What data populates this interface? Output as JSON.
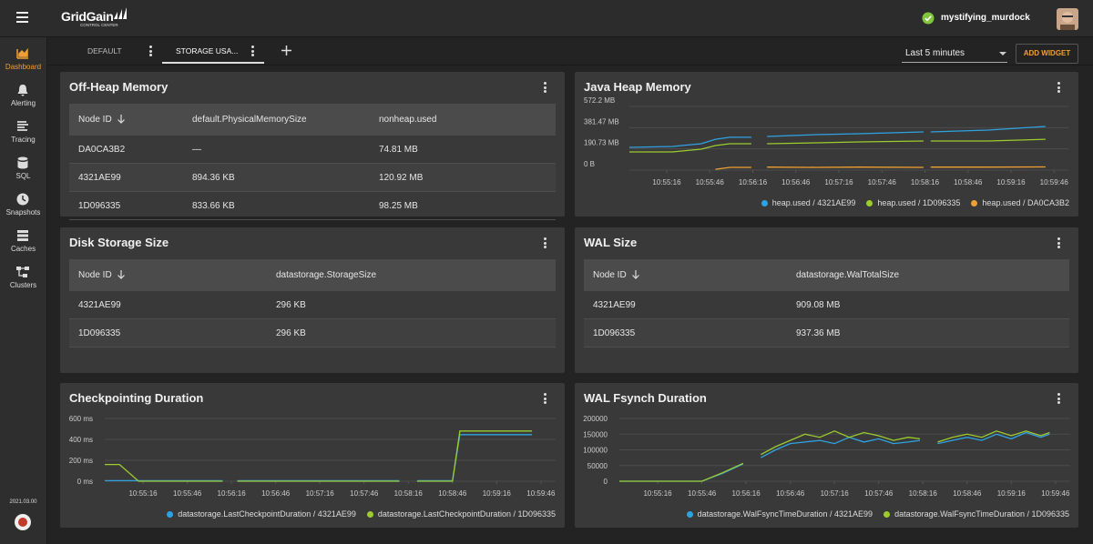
{
  "header": {
    "brand": "GridGain",
    "brand_sub": "CONTROL CENTER",
    "user": "mystifying_murdock"
  },
  "sidebar": {
    "items": [
      "Dashboard",
      "Alerting",
      "Tracing",
      "SQL",
      "Snapshots",
      "Caches",
      "Clusters"
    ],
    "version": "2021.03.00"
  },
  "tabs": {
    "items": [
      "DEFAULT",
      "STORAGE USA..."
    ],
    "time_range": "Last 5 minutes",
    "add_widget": "ADD WIDGET"
  },
  "tables": [
    {
      "title": "Off-Heap Memory",
      "headers": [
        "Node ID",
        "default.PhysicalMemorySize",
        "nonheap.used"
      ],
      "rows": [
        [
          "DA0CA3B2",
          "—",
          "74.81 MB"
        ],
        [
          "4321AE99",
          "894.36 KB",
          "120.92 MB"
        ],
        [
          "1D096335",
          "833.66 KB",
          "98.25 MB"
        ]
      ]
    },
    {
      "title": "Disk Storage Size",
      "headers": [
        "Node ID",
        "datastorage.StorageSize"
      ],
      "rows": [
        [
          "4321AE99",
          "296 KB"
        ],
        [
          "1D096335",
          "296 KB"
        ]
      ]
    },
    {
      "title": "WAL Size",
      "headers": [
        "Node ID",
        "datastorage.WalTotalSize"
      ],
      "rows": [
        [
          "4321AE99",
          "909.08 MB"
        ],
        [
          "1D096335",
          "937.36 MB"
        ]
      ]
    }
  ],
  "chart_data": [
    {
      "type": "line",
      "title": "Java Heap Memory",
      "x": [
        "10:54:50",
        "10:55:20",
        "10:55:40",
        "10:55:50",
        "10:56:00",
        "10:56:15",
        "10:56:20",
        "10:56:26",
        "10:57:00",
        "10:57:30",
        "10:58:15",
        "10:58:17",
        "10:58:20",
        "10:59:00",
        "10:59:40"
      ],
      "xlim": [
        "10:54:50",
        "10:59:56"
      ],
      "xticks": [
        "10:55:16",
        "10:55:46",
        "10:56:16",
        "10:56:46",
        "10:57:16",
        "10:57:46",
        "10:58:16",
        "10:58:46",
        "10:59:16",
        "10:59:46"
      ],
      "ylim": [
        0,
        600000000
      ],
      "yticks": [
        {
          "value": 0,
          "label": "0 B"
        },
        {
          "value": 200000000,
          "label": "190.73 MB"
        },
        {
          "value": 400000000,
          "label": "381.47 MB"
        },
        {
          "value": 600000000,
          "label": "572.2 MB"
        }
      ],
      "grid": true,
      "legend": "bottom-right",
      "series": [
        {
          "name": "heap.used / 4321AE99",
          "color": "#2ea3e3",
          "values": [
            214000000,
            223000000,
            249000000,
            291000000,
            309000000,
            309000000,
            null,
            317000000,
            334000000,
            343000000,
            360000000,
            null,
            360000000,
            377000000,
            411000000
          ]
        },
        {
          "name": "heap.used / 1D096335",
          "color": "#9ccc2e",
          "values": [
            171000000,
            171000000,
            197000000,
            231000000,
            249000000,
            249000000,
            null,
            249000000,
            257000000,
            266000000,
            274000000,
            null,
            274000000,
            274000000,
            291000000
          ]
        },
        {
          "name": "heap.used / DA0CA3B2",
          "color": "#f0a030",
          "values": [
            null,
            null,
            null,
            8000000,
            26000000,
            26000000,
            null,
            28000000,
            26000000,
            28000000,
            26000000,
            null,
            28000000,
            28000000,
            30000000
          ]
        }
      ]
    },
    {
      "type": "line",
      "title": "Checkpointing Duration",
      "x": [
        "10:54:50",
        "10:55:00",
        "10:55:13",
        "10:55:40",
        "10:56:10",
        "10:56:16",
        "10:56:20",
        "10:57:30",
        "10:58:10",
        "10:58:16",
        "10:58:22",
        "10:58:46",
        "10:58:51",
        "10:59:20",
        "10:59:40"
      ],
      "xlim": [
        "10:54:50",
        "10:59:56"
      ],
      "xticks": [
        "10:55:16",
        "10:55:46",
        "10:56:16",
        "10:56:46",
        "10:57:16",
        "10:57:46",
        "10:58:16",
        "10:58:46",
        "10:59:16",
        "10:59:46"
      ],
      "ylim": [
        0,
        600
      ],
      "yticks": [
        {
          "value": 0,
          "label": "0 ms"
        },
        {
          "value": 200,
          "label": "200 ms"
        },
        {
          "value": 400,
          "label": "400 ms"
        },
        {
          "value": 600,
          "label": "600 ms"
        }
      ],
      "grid": true,
      "legend": "bottom-right",
      "series": [
        {
          "name": "datastorage.LastCheckpointDuration / 4321AE99",
          "color": "#2ea3e3",
          "values": [
            5,
            5,
            5,
            5,
            5,
            null,
            5,
            5,
            5,
            null,
            5,
            5,
            445,
            445,
            445
          ]
        },
        {
          "name": "datastorage.LastCheckpointDuration / 1D096335",
          "color": "#9ccc2e",
          "values": [
            160,
            160,
            0,
            0,
            0,
            null,
            0,
            0,
            0,
            null,
            0,
            0,
            480,
            480,
            480
          ]
        }
      ]
    },
    {
      "type": "line",
      "title": "WAL Fsynch Duration",
      "x": [
        "10:54:50",
        "10:55:20",
        "10:55:46",
        "10:56:00",
        "10:56:14",
        "10:56:20",
        "10:56:26",
        "10:56:36",
        "10:56:46",
        "10:56:56",
        "10:57:06",
        "10:57:16",
        "10:57:26",
        "10:57:36",
        "10:57:46",
        "10:57:56",
        "10:58:06",
        "10:58:14",
        "10:58:20",
        "10:58:26",
        "10:58:36",
        "10:58:46",
        "10:58:56",
        "10:59:06",
        "10:59:16",
        "10:59:26",
        "10:59:36",
        "10:59:42"
      ],
      "xlim": [
        "10:54:50",
        "10:59:56"
      ],
      "xticks": [
        "10:55:16",
        "10:55:46",
        "10:56:16",
        "10:56:46",
        "10:57:16",
        "10:57:46",
        "10:58:16",
        "10:58:46",
        "10:59:16",
        "10:59:46"
      ],
      "ylim": [
        0,
        200000
      ],
      "yticks": [
        0,
        50000,
        100000,
        150000,
        200000
      ],
      "grid": true,
      "legend": "bottom-right",
      "series": [
        {
          "name": "datastorage.WalFsyncTimeDuration / 4321AE99",
          "color": "#2ea3e3",
          "values": [
            0,
            0,
            0,
            25000,
            55000,
            null,
            75000,
            100000,
            120000,
            125000,
            130000,
            120000,
            140000,
            125000,
            135000,
            120000,
            125000,
            130000,
            null,
            120000,
            130000,
            140000,
            130000,
            150000,
            135000,
            155000,
            140000,
            150000
          ]
        },
        {
          "name": "datastorage.WalFsyncTimeDuration / 1D096335",
          "color": "#9ccc2e",
          "values": [
            0,
            0,
            0,
            27000,
            57000,
            null,
            85000,
            110000,
            130000,
            150000,
            140000,
            160000,
            140000,
            155000,
            145000,
            130000,
            140000,
            135000,
            null,
            125000,
            140000,
            150000,
            140000,
            160000,
            145000,
            160000,
            145000,
            155000
          ]
        }
      ]
    }
  ]
}
